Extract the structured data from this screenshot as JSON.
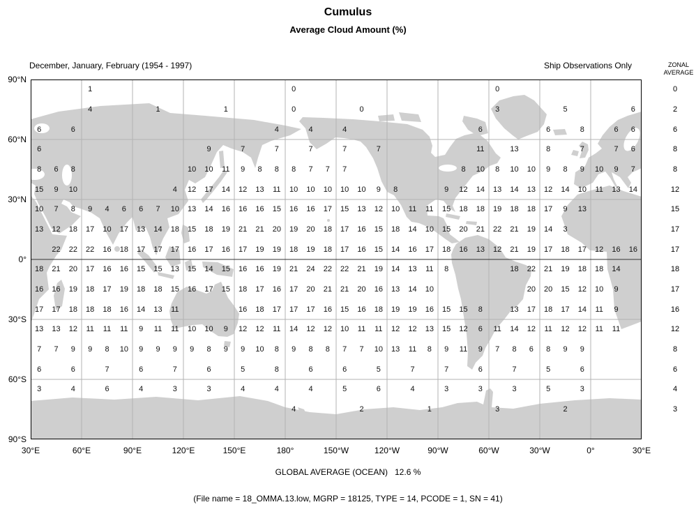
{
  "title": "Cumulus",
  "subtitle": "Average Cloud Amount (%)",
  "header": {
    "period": "December, January, February (1954 - 1997)",
    "source": "Ship Observations Only",
    "zonal_line1": "ZONAL",
    "zonal_line2": "AVERAGE"
  },
  "footer": {
    "global_average_text": "GLOBAL AVERAGE (OCEAN)   12.6 %",
    "file_info": "(File name = 18_OMMA.13.low, MGRP = 18125, TYPE = 14, PCODE = 1, SN = 41)"
  },
  "colors": {
    "land": "#cfcfcf",
    "grid": "#b3b3b3",
    "frame": "#000000",
    "equator": "#333333"
  },
  "chart_data": {
    "type": "heatmap",
    "title": "Cumulus - Average Cloud Amount (%)",
    "units": "percent cloud amount",
    "lon_start_deg_east": 30,
    "cell_size_deg": 10,
    "x_tick_labels": [
      "30°E",
      "60°E",
      "90°E",
      "120°E",
      "150°E",
      "180°",
      "150°W",
      "120°W",
      "90°W",
      "60°W",
      "30°W",
      "0°",
      "30°E"
    ],
    "y_tick_labels": [
      "90°N",
      "60°N",
      "30°N",
      "0°",
      "30°S",
      "60°S",
      "90°S"
    ],
    "zonal_average_header": "ZONAL AVERAGE",
    "global_average_ocean_percent": 12.6,
    "rows": [
      {
        "lat_band": "85°N",
        "zonal_average": 0,
        "values": [
          null,
          null,
          null,
          1,
          null,
          null,
          null,
          null,
          null,
          null,
          null,
          null,
          null,
          null,
          null,
          0,
          null,
          null,
          null,
          null,
          null,
          null,
          null,
          null,
          null,
          null,
          null,
          0,
          null,
          null,
          null,
          null,
          null,
          null,
          null,
          null
        ]
      },
      {
        "lat_band": "75°N",
        "zonal_average": 2,
        "values": [
          null,
          null,
          null,
          4,
          null,
          null,
          null,
          1,
          null,
          null,
          null,
          1,
          null,
          null,
          null,
          0,
          null,
          null,
          null,
          0,
          null,
          null,
          null,
          null,
          null,
          null,
          null,
          3,
          null,
          null,
          null,
          5,
          null,
          null,
          null,
          6
        ]
      },
      {
        "lat_band": "65°N",
        "zonal_average": 6,
        "values": [
          6,
          null,
          6,
          null,
          null,
          null,
          null,
          null,
          null,
          null,
          null,
          null,
          null,
          null,
          4,
          null,
          4,
          null,
          4,
          null,
          null,
          null,
          null,
          null,
          null,
          null,
          6,
          null,
          null,
          null,
          6,
          null,
          8,
          null,
          6,
          6
        ]
      },
      {
        "lat_band": "55°N",
        "zonal_average": 8,
        "values": [
          6,
          null,
          null,
          null,
          null,
          null,
          null,
          null,
          null,
          null,
          9,
          null,
          7,
          null,
          7,
          null,
          7,
          null,
          7,
          null,
          7,
          null,
          null,
          null,
          null,
          null,
          11,
          null,
          13,
          null,
          8,
          null,
          7,
          null,
          7,
          6
        ]
      },
      {
        "lat_band": "45°N",
        "zonal_average": 8,
        "values": [
          8,
          6,
          8,
          null,
          null,
          null,
          null,
          null,
          null,
          10,
          10,
          11,
          9,
          8,
          8,
          8,
          7,
          7,
          7,
          null,
          null,
          null,
          null,
          null,
          null,
          8,
          10,
          8,
          10,
          10,
          9,
          8,
          9,
          10,
          9,
          7
        ]
      },
      {
        "lat_band": "35°N",
        "zonal_average": 12,
        "values": [
          15,
          9,
          10,
          null,
          null,
          null,
          null,
          null,
          4,
          12,
          17,
          14,
          12,
          13,
          11,
          10,
          10,
          10,
          10,
          10,
          9,
          8,
          null,
          null,
          9,
          12,
          14,
          13,
          14,
          13,
          12,
          14,
          10,
          11,
          13,
          14
        ]
      },
      {
        "lat_band": "25°N",
        "zonal_average": 15,
        "values": [
          10,
          7,
          8,
          9,
          4,
          6,
          6,
          7,
          10,
          13,
          14,
          16,
          16,
          16,
          15,
          16,
          16,
          17,
          15,
          13,
          12,
          10,
          11,
          11,
          15,
          18,
          18,
          19,
          18,
          18,
          17,
          9,
          13,
          null,
          null,
          null
        ]
      },
      {
        "lat_band": "15°N",
        "zonal_average": 17,
        "values": [
          13,
          12,
          18,
          17,
          10,
          17,
          13,
          14,
          18,
          15,
          18,
          19,
          21,
          21,
          20,
          19,
          20,
          18,
          17,
          16,
          15,
          18,
          14,
          10,
          15,
          20,
          21,
          22,
          21,
          19,
          14,
          3,
          null,
          null,
          null,
          null
        ]
      },
      {
        "lat_band": "5°N",
        "zonal_average": 17,
        "values": [
          null,
          22,
          22,
          22,
          16,
          18,
          17,
          17,
          17,
          16,
          17,
          16,
          17,
          19,
          19,
          18,
          19,
          18,
          17,
          16,
          15,
          14,
          16,
          17,
          18,
          16,
          13,
          12,
          21,
          19,
          17,
          18,
          17,
          12,
          16,
          16
        ]
      },
      {
        "lat_band": "5°S",
        "zonal_average": 18,
        "values": [
          18,
          21,
          20,
          17,
          16,
          16,
          15,
          15,
          13,
          15,
          14,
          15,
          16,
          16,
          19,
          21,
          24,
          22,
          22,
          21,
          19,
          14,
          13,
          11,
          8,
          null,
          null,
          null,
          18,
          22,
          21,
          19,
          18,
          18,
          14,
          null
        ]
      },
      {
        "lat_band": "15°S",
        "zonal_average": 17,
        "values": [
          16,
          16,
          19,
          18,
          17,
          19,
          18,
          18,
          15,
          16,
          17,
          15,
          18,
          17,
          16,
          17,
          20,
          21,
          21,
          20,
          16,
          13,
          14,
          10,
          null,
          null,
          null,
          null,
          null,
          20,
          20,
          15,
          12,
          10,
          9,
          null
        ]
      },
      {
        "lat_band": "25°S",
        "zonal_average": 16,
        "values": [
          17,
          17,
          18,
          18,
          18,
          16,
          14,
          13,
          11,
          null,
          null,
          null,
          16,
          18,
          17,
          17,
          17,
          16,
          15,
          16,
          18,
          19,
          19,
          16,
          15,
          15,
          8,
          null,
          13,
          17,
          18,
          17,
          14,
          11,
          9,
          null
        ]
      },
      {
        "lat_band": "35°S",
        "zonal_average": 12,
        "values": [
          13,
          13,
          12,
          11,
          11,
          11,
          9,
          11,
          11,
          10,
          10,
          9,
          12,
          12,
          11,
          14,
          12,
          12,
          10,
          11,
          11,
          12,
          12,
          13,
          15,
          12,
          6,
          11,
          14,
          12,
          11,
          12,
          12,
          11,
          11,
          null
        ]
      },
      {
        "lat_band": "45°S",
        "zonal_average": 8,
        "values": [
          7,
          7,
          9,
          9,
          8,
          10,
          9,
          9,
          9,
          9,
          8,
          9,
          9,
          10,
          8,
          9,
          8,
          8,
          7,
          7,
          10,
          13,
          11,
          8,
          9,
          11,
          9,
          7,
          8,
          6,
          8,
          9,
          9,
          null,
          null,
          null
        ]
      },
      {
        "lat_band": "55°S",
        "zonal_average": 6,
        "values": [
          6,
          null,
          6,
          null,
          7,
          null,
          6,
          null,
          7,
          null,
          6,
          null,
          5,
          null,
          8,
          null,
          6,
          null,
          6,
          null,
          5,
          null,
          7,
          null,
          7,
          null,
          6,
          null,
          7,
          null,
          5,
          null,
          6,
          null,
          null,
          null
        ]
      },
      {
        "lat_band": "65°S",
        "zonal_average": 4,
        "values": [
          3,
          null,
          4,
          null,
          6,
          null,
          4,
          null,
          3,
          null,
          3,
          null,
          4,
          null,
          4,
          null,
          4,
          null,
          5,
          null,
          6,
          null,
          4,
          null,
          3,
          null,
          3,
          null,
          3,
          null,
          5,
          null,
          3,
          null,
          null,
          null
        ]
      },
      {
        "lat_band": "75°S",
        "zonal_average": 3,
        "values": [
          null,
          null,
          null,
          null,
          null,
          null,
          null,
          null,
          null,
          null,
          null,
          null,
          null,
          null,
          null,
          4,
          null,
          null,
          null,
          2,
          null,
          null,
          null,
          1,
          null,
          null,
          null,
          3,
          null,
          null,
          null,
          2,
          null,
          null,
          null,
          null
        ]
      }
    ]
  }
}
